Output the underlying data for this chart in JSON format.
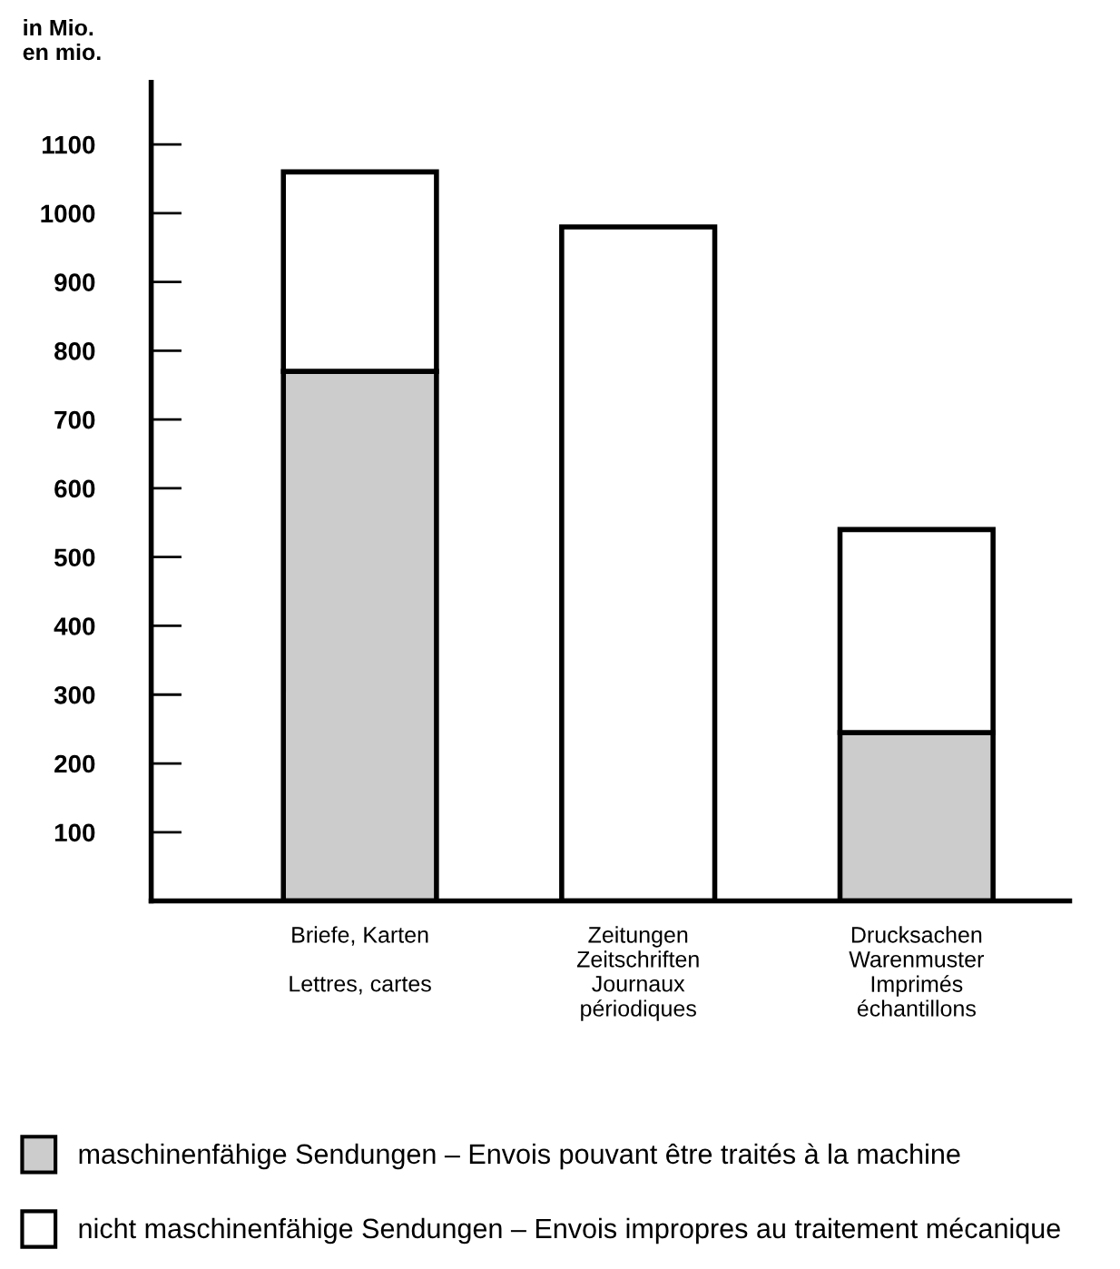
{
  "chart_data": {
    "type": "bar",
    "stacked": true,
    "ylabel": "in Mio.\nen mio.",
    "categories": [
      "Briefe, Karten\n\nLettres, cartes",
      "Zeitungen\nZeitschriften\nJournaux\npériodiques",
      "Drucksachen\nWarenmuster\nImprimés\néchantillons"
    ],
    "series": [
      {
        "name": "maschinenfähige Sendungen – Envois pouvant être traités à la machine",
        "color": "#cccccc",
        "values": [
          770,
          null,
          245
        ]
      },
      {
        "name": "nicht maschinenfähige Sendungen – Envois impropres au traitement mécanique",
        "color": "#ffffff",
        "values": [
          290,
          980,
          295
        ]
      }
    ],
    "ylim": [
      0,
      1190
    ],
    "yticks": [
      100,
      200,
      300,
      400,
      500,
      600,
      700,
      800,
      900,
      1000,
      1100
    ],
    "grid": false,
    "legend": "bottom"
  }
}
